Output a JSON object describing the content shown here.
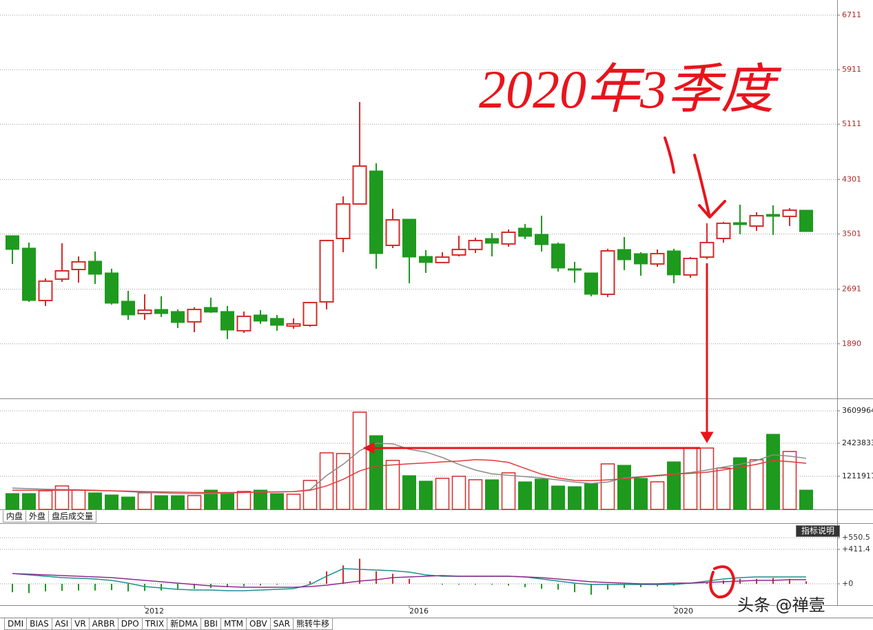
{
  "chart_data": [
    {
      "type": "candlestick",
      "open": [
        3476,
        3294,
        2525,
        2839,
        2980,
        3102,
        2930,
        2515,
        2333,
        2394,
        2364,
        2212,
        2424,
        2364,
        2081,
        2313,
        2263,
        2151,
        2161,
        2505,
        3435,
        3941,
        4426,
        3334,
        3718,
        3172,
        3082,
        3193,
        3274,
        3435,
        3355,
        3587,
        3496,
        3355,
        2991,
        2930,
        2616,
        3274,
        3213,
        3061,
        3253,
        2900,
        3162,
        3435,
        3668,
        3617,
        3789,
        3759,
        3850
      ],
      "high": [
        3476,
        3375,
        2849,
        3365,
        3172,
        3243,
        2991,
        2667,
        2616,
        2586,
        2394,
        2424,
        2566,
        2445,
        2364,
        2384,
        2313,
        2263,
        2505,
        3405,
        4052,
        5437,
        4537,
        3870,
        3718,
        3264,
        3233,
        3476,
        3445,
        3516,
        3567,
        3648,
        3769,
        3375,
        3092,
        2930,
        3284,
        3456,
        3233,
        3274,
        3284,
        3162,
        3658,
        3678,
        3931,
        3820,
        3921,
        3880,
        3850
      ],
      "low": [
        3061,
        2505,
        2445,
        2798,
        2788,
        2768,
        2465,
        2242,
        2242,
        2283,
        2121,
        2060,
        2344,
        1959,
        2050,
        2182,
        2081,
        2111,
        2141,
        2394,
        3233,
        3931,
        2991,
        3294,
        2778,
        2930,
        3072,
        3172,
        3223,
        3172,
        3314,
        3425,
        3243,
        2950,
        2788,
        2586,
        2576,
        2970,
        2889,
        3021,
        2778,
        2859,
        3132,
        3375,
        3496,
        3547,
        3486,
        3617,
        3536
      ],
      "close": [
        3274,
        2525,
        2809,
        2960,
        3092,
        2910,
        2485,
        2313,
        2384,
        2333,
        2202,
        2394,
        2354,
        2091,
        2293,
        2222,
        2161,
        2182,
        2495,
        3405,
        3941,
        4497,
        3213,
        3708,
        3162,
        3082,
        3162,
        3274,
        3405,
        3365,
        3526,
        3466,
        3344,
        3001,
        2970,
        2616,
        3253,
        3122,
        3061,
        3213,
        2900,
        3142,
        3375,
        3658,
        3637,
        3769,
        3759,
        3850,
        3536
      ],
      "up_color": "#d42a2a",
      "down_color": "#1e9a1e",
      "ylim": [
        1089,
        6933
      ],
      "yticks": [
        1890,
        2691,
        3501,
        4301,
        5111,
        5911,
        6711
      ],
      "grid": true,
      "annotation": "2020年3季度"
    },
    {
      "type": "bar",
      "values": [
        580700,
        580700,
        681700,
        858400,
        706900,
        605900,
        530200,
        454500,
        605900,
        505000,
        505000,
        505000,
        706900,
        580700,
        656400,
        706900,
        580700,
        555500,
        1060400,
        2070300,
        2045100,
        3560000,
        2701500,
        1792600,
        1237200,
        1035200,
        1136200,
        1211900,
        1085700,
        1085700,
        1338100,
        1009900,
        1110900,
        858400,
        833200,
        934200,
        1666400,
        1615900,
        1136200,
        1009900,
        1742100,
        2247100,
        2247100,
        1514900,
        1893600,
        1817900,
        2752000,
        2120800,
        706900
      ],
      "series": [
        {
          "color": "#8a8a8a",
          "values": [
            780000,
            760000,
            740000,
            730000,
            720000,
            700000,
            680000,
            650000,
            620000,
            600000,
            580000,
            570000,
            580000,
            590000,
            620000,
            640000,
            640000,
            650000,
            720000,
            1240000,
            1650000,
            2150000,
            2420000,
            2400000,
            2200000,
            2100000,
            1900000,
            1650000,
            1440000,
            1300000,
            1250000,
            1200000,
            1150000,
            1080000,
            1000000,
            950000,
            1000000,
            1150000,
            1200000,
            1250000,
            1290000,
            1350000,
            1440000,
            1550000,
            1650000,
            1790000,
            2000000,
            1950000,
            1870000
          ]
        },
        {
          "color": "#e23a3a",
          "values": [
            700000,
            700000,
            700000,
            700000,
            700000,
            690000,
            680000,
            670000,
            650000,
            640000,
            630000,
            620000,
            620000,
            620000,
            620000,
            630000,
            640000,
            650000,
            700000,
            860000,
            1100000,
            1410000,
            1590000,
            1630000,
            1670000,
            1700000,
            1740000,
            1770000,
            1820000,
            1800000,
            1720000,
            1500000,
            1290000,
            1150000,
            1060000,
            1050000,
            1080000,
            1120000,
            1180000,
            1230000,
            1290000,
            1320000,
            1360000,
            1450000,
            1540000,
            1650000,
            1790000,
            1750000,
            1690000
          ]
        }
      ],
      "ylim": [
        0,
        4040000
      ],
      "yticks": [
        1211917,
        2423833,
        3609964
      ],
      "grid": true
    },
    {
      "type": "line",
      "categories": [
        null,
        null,
        null,
        null,
        null,
        null,
        null,
        null,
        "2012",
        null,
        null,
        null,
        null,
        null,
        null,
        null,
        null,
        null,
        null,
        null,
        null,
        null,
        null,
        null,
        "2016",
        null,
        null,
        null,
        null,
        null,
        null,
        null,
        null,
        null,
        null,
        null,
        null,
        null,
        null,
        null,
        "2020",
        null,
        null,
        null,
        null,
        null,
        null,
        null,
        null
      ],
      "histogram": [
        -100,
        -110,
        -90,
        -85,
        -80,
        -80,
        -75,
        -90,
        -85,
        -80,
        -70,
        -60,
        -50,
        -40,
        -30,
        -20,
        -10,
        0,
        30,
        150,
        220,
        300,
        150,
        120,
        60,
        0,
        -10,
        -10,
        -10,
        -10,
        -20,
        -40,
        -60,
        -70,
        -100,
        -130,
        -70,
        -50,
        -40,
        -30,
        -20,
        0,
        20,
        40,
        60,
        60,
        70,
        60,
        30
      ],
      "series": [
        {
          "color": "#1f8f8f",
          "values": [
            123,
            107,
            91,
            74,
            66,
            58,
            41,
            8,
            -33,
            -49,
            -66,
            -74,
            -74,
            -82,
            -82,
            -74,
            -66,
            -58,
            -8,
            91,
            181,
            173,
            165,
            156,
            140,
            107,
            91,
            91,
            91,
            91,
            91,
            82,
            58,
            33,
            8,
            -8,
            -8,
            -8,
            -8,
            -8,
            -8,
            8,
            33,
            58,
            74,
            82,
            82,
            82,
            82
          ]
        },
        {
          "color": "#8e2a8e",
          "values": [
            123,
            115,
            107,
            99,
            91,
            82,
            74,
            58,
            41,
            25,
            8,
            -8,
            -25,
            -33,
            -41,
            -41,
            -41,
            -41,
            -33,
            -16,
            8,
            33,
            49,
            74,
            82,
            91,
            99,
            91,
            91,
            91,
            91,
            82,
            74,
            58,
            41,
            25,
            16,
            8,
            0,
            0,
            8,
            8,
            16,
            25,
            33,
            41,
            41,
            49,
            49
          ]
        }
      ],
      "ylim": [
        -255,
        716
      ],
      "yticks": [
        {
          "value": 550.5,
          "label": "+550.5"
        },
        {
          "value": 411.4,
          "label": "+411.4"
        },
        {
          "value": 0,
          "label": "+0"
        }
      ],
      "grid": true
    }
  ],
  "ui": {
    "volume_tabs": [
      "内盘",
      "外盘",
      "盘后成交量"
    ],
    "indicator_button": "指标说明",
    "indicator_tabs": [
      "DMI",
      "BIAS",
      "ASI",
      "VR",
      "ARBR",
      "DPO",
      "TRIX",
      "新DMA",
      "BBI",
      "MTM",
      "OBV",
      "SAR",
      "熊转牛移"
    ],
    "watermark": "头条 @禅壹"
  }
}
